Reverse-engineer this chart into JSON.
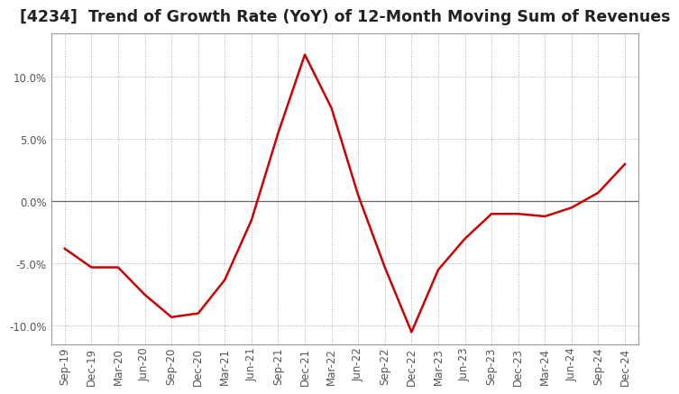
{
  "title": "[4234]  Trend of Growth Rate (YoY) of 12-Month Moving Sum of Revenues",
  "title_fontsize": 12.5,
  "line_color": "#cc0000",
  "background_color": "#ffffff",
  "grid_color": "#aaaaaa",
  "zero_line_color": "#666666",
  "ylim": [
    -0.115,
    0.135
  ],
  "yticks": [
    -0.1,
    -0.05,
    0.0,
    0.05,
    0.1
  ],
  "ytick_labels": [
    "-10.0%",
    "-5.0%",
    "0.0%",
    "5.0%",
    "10.0%"
  ],
  "x_labels": [
    "Sep-19",
    "Dec-19",
    "Mar-20",
    "Jun-20",
    "Sep-20",
    "Dec-20",
    "Mar-21",
    "Jun-21",
    "Sep-21",
    "Dec-21",
    "Mar-22",
    "Jun-22",
    "Sep-22",
    "Dec-22",
    "Mar-23",
    "Jun-23",
    "Sep-23",
    "Dec-23",
    "Mar-24",
    "Jun-24",
    "Sep-24",
    "Dec-24"
  ],
  "y_values": [
    -0.038,
    -0.053,
    -0.053,
    -0.075,
    -0.093,
    -0.09,
    -0.063,
    -0.015,
    0.055,
    0.118,
    0.075,
    0.005,
    -0.053,
    -0.105,
    -0.055,
    -0.03,
    -0.01,
    -0.01,
    -0.012,
    -0.005,
    0.007,
    0.03
  ],
  "spine_color": "#999999",
  "tick_label_color": "#555555",
  "tick_fontsize": 8.5
}
